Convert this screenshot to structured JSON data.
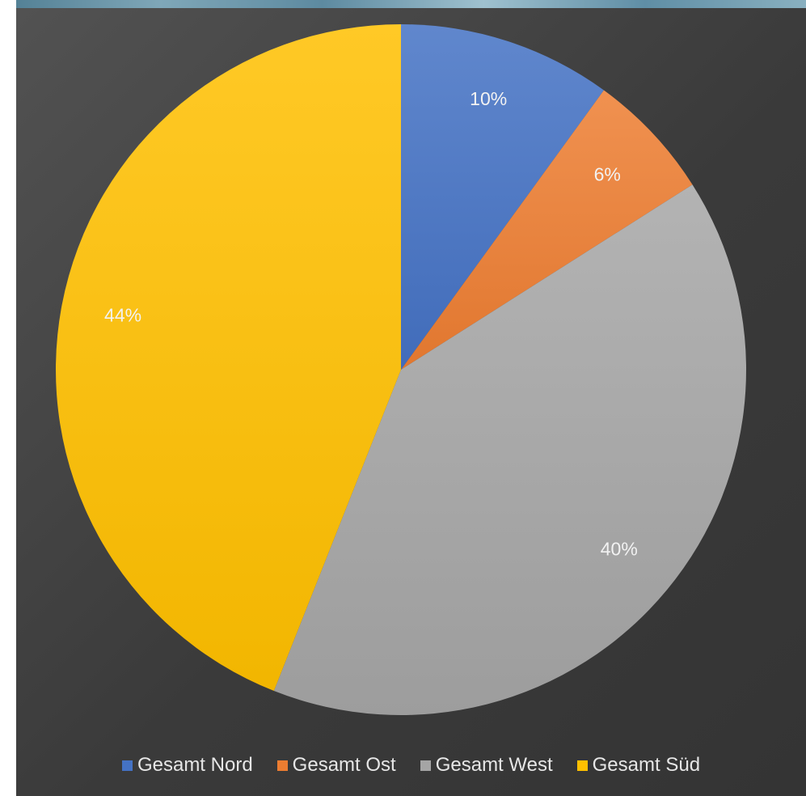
{
  "chart_data": {
    "type": "pie",
    "title": "",
    "categories": [
      "Gesamt Nord",
      "Gesamt Ost",
      "Gesamt West",
      "Gesamt Süd"
    ],
    "values": [
      10,
      6,
      40,
      44
    ],
    "data_labels": [
      "10%",
      "6%",
      "40%",
      "44%"
    ],
    "colors": [
      "#4472c4",
      "#ed7d31",
      "#a5a5a5",
      "#ffc000"
    ],
    "legend_position": "bottom",
    "background": "#404040"
  }
}
